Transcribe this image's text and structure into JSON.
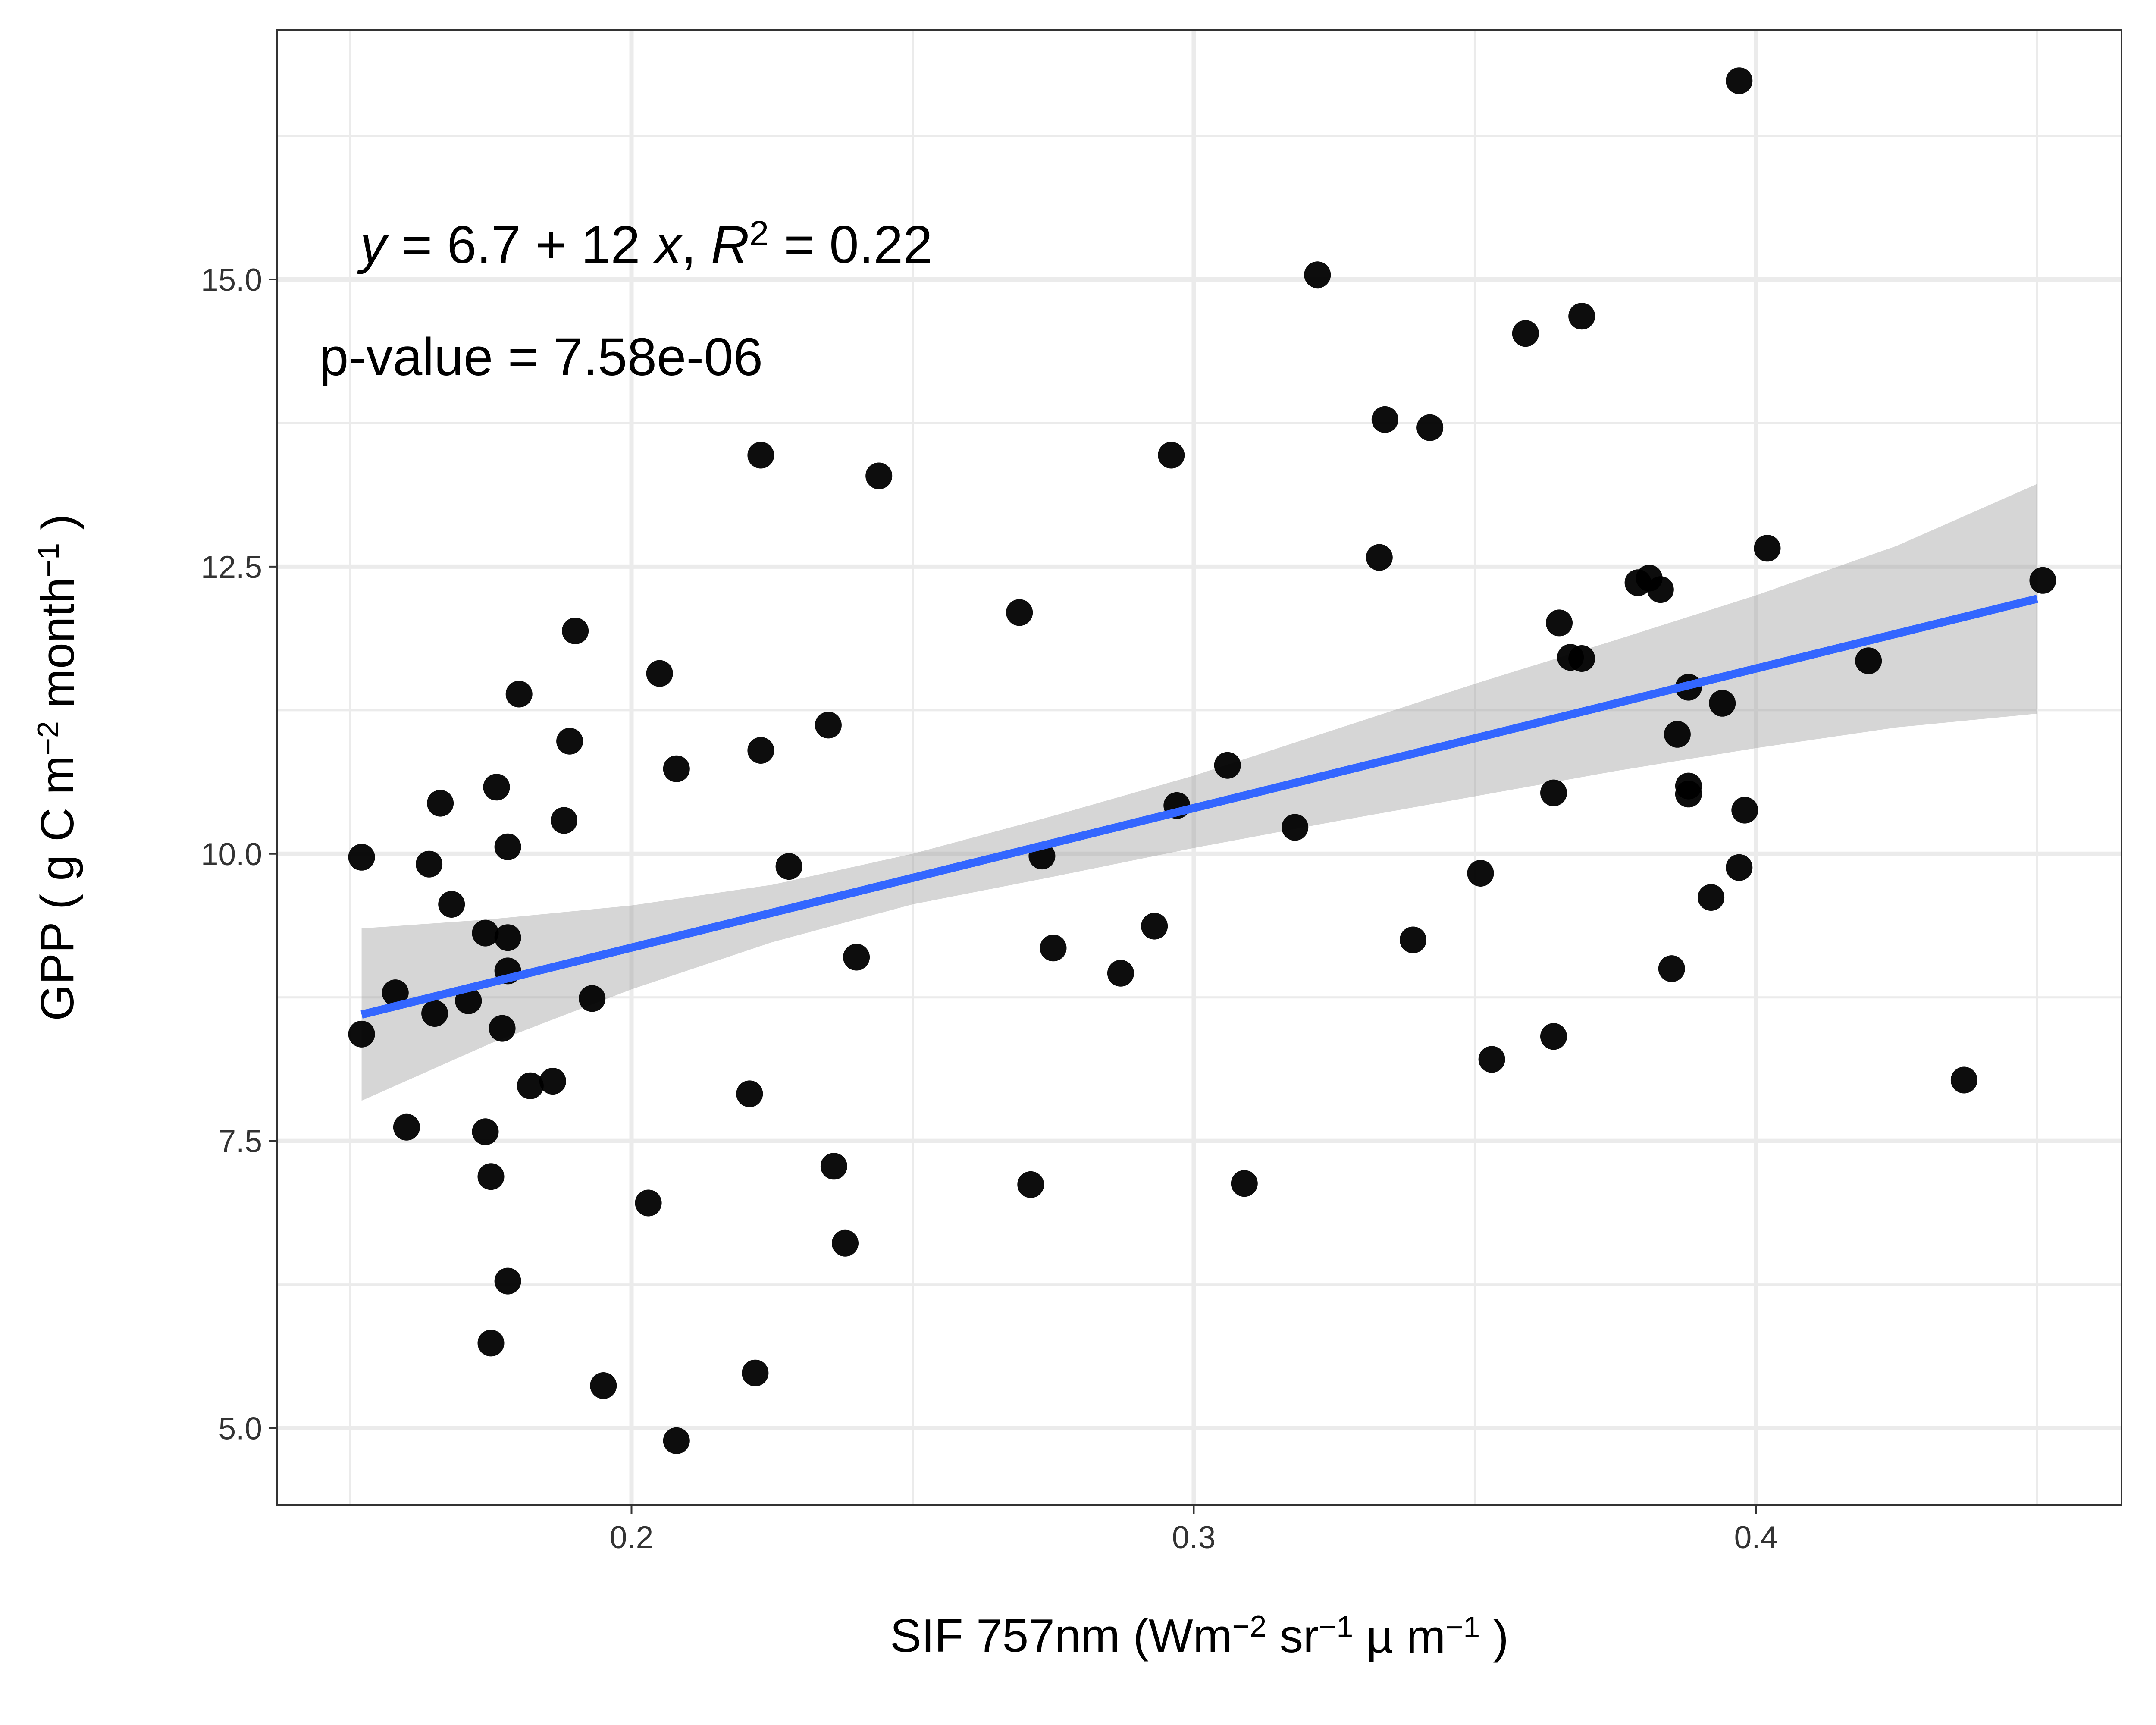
{
  "chart_data": {
    "type": "scatter",
    "xlabel": {
      "parts": [
        {
          "t": "SIF 757nm (Wm"
        },
        {
          "t": "−2",
          "sup": true
        },
        {
          "t": " sr"
        },
        {
          "t": "−1",
          "sup": true
        },
        {
          "t": " µ m"
        },
        {
          "t": "−1",
          "sup": true
        },
        {
          "t": " )"
        }
      ]
    },
    "ylabel": {
      "parts": [
        {
          "t": "GPP ( g C m"
        },
        {
          "t": "−2",
          "sup": true
        },
        {
          "t": " month"
        },
        {
          "t": "−1",
          "sup": true
        },
        {
          "t": " )"
        }
      ]
    },
    "xlim": [
      0.137,
      0.465
    ],
    "ylim": [
      4.33,
      17.17
    ],
    "x_ticks": [
      0.2,
      0.3,
      0.4
    ],
    "x_tick_labels": [
      "0.2",
      "0.3",
      "0.4"
    ],
    "y_ticks": [
      5.0,
      7.5,
      10.0,
      12.5,
      15.0
    ],
    "y_tick_labels": [
      "5.0",
      "7.5",
      "10.0",
      "12.5",
      "15.0"
    ],
    "grid": true,
    "legend": "none",
    "annotations": [
      {
        "parts": [
          {
            "t": "y",
            "i": true
          },
          {
            "t": " = 6.7 + 12 "
          },
          {
            "t": "x",
            "i": true
          },
          {
            "t": ",  "
          },
          {
            "t": "R",
            "i": true
          },
          {
            "t": "2",
            "sup": true
          },
          {
            "t": " = 0.22"
          }
        ],
        "position": "top-left"
      },
      {
        "parts": [
          {
            "t": "p-value = 7.58e-06"
          }
        ],
        "position": "top-left"
      }
    ],
    "fit": {
      "x": [
        0.152,
        0.175,
        0.2,
        0.225,
        0.25,
        0.275,
        0.3,
        0.325,
        0.35,
        0.375,
        0.4,
        0.425,
        0.45
      ],
      "y": [
        8.6,
        8.88,
        9.18,
        9.48,
        9.78,
        10.08,
        10.38,
        10.68,
        10.98,
        11.28,
        11.58,
        11.88,
        12.22
      ],
      "lower": [
        7.85,
        8.35,
        8.82,
        9.23,
        9.56,
        9.8,
        10.05,
        10.28,
        10.5,
        10.72,
        10.92,
        11.1,
        11.22
      ],
      "upper": [
        9.35,
        9.43,
        9.55,
        9.73,
        10.0,
        10.33,
        10.68,
        11.08,
        11.48,
        11.86,
        12.25,
        12.68,
        13.22
      ],
      "color": "#3366ff"
    },
    "points": [
      [
        0.152,
        9.97
      ],
      [
        0.152,
        8.43
      ],
      [
        0.158,
        8.79
      ],
      [
        0.16,
        7.62
      ],
      [
        0.164,
        9.91
      ],
      [
        0.165,
        8.61
      ],
      [
        0.166,
        10.44
      ],
      [
        0.168,
        9.56
      ],
      [
        0.171,
        8.72
      ],
      [
        0.174,
        9.31
      ],
      [
        0.174,
        7.58
      ],
      [
        0.175,
        5.74
      ],
      [
        0.175,
        7.19
      ],
      [
        0.176,
        10.58
      ],
      [
        0.177,
        8.48
      ],
      [
        0.178,
        10.06
      ],
      [
        0.178,
        9.27
      ],
      [
        0.178,
        8.98
      ],
      [
        0.178,
        6.28
      ],
      [
        0.18,
        11.39
      ],
      [
        0.182,
        7.98
      ],
      [
        0.186,
        8.02
      ],
      [
        0.188,
        10.29
      ],
      [
        0.189,
        10.98
      ],
      [
        0.19,
        11.94
      ],
      [
        0.193,
        8.74
      ],
      [
        0.195,
        5.37
      ],
      [
        0.203,
        6.96
      ],
      [
        0.205,
        11.57
      ],
      [
        0.208,
        10.74
      ],
      [
        0.208,
        4.89
      ],
      [
        0.221,
        7.91
      ],
      [
        0.222,
        5.48
      ],
      [
        0.223,
        13.47
      ],
      [
        0.223,
        10.9
      ],
      [
        0.228,
        9.89
      ],
      [
        0.235,
        11.12
      ],
      [
        0.236,
        7.28
      ],
      [
        0.238,
        6.61
      ],
      [
        0.24,
        9.1
      ],
      [
        0.244,
        13.29
      ],
      [
        0.269,
        12.1
      ],
      [
        0.271,
        7.12
      ],
      [
        0.273,
        9.98
      ],
      [
        0.275,
        9.18
      ],
      [
        0.287,
        8.96
      ],
      [
        0.293,
        9.37
      ],
      [
        0.296,
        13.47
      ],
      [
        0.297,
        10.42
      ],
      [
        0.306,
        10.77
      ],
      [
        0.309,
        7.13
      ],
      [
        0.318,
        10.23
      ],
      [
        0.322,
        15.04
      ],
      [
        0.333,
        12.58
      ],
      [
        0.334,
        13.78
      ],
      [
        0.339,
        9.25
      ],
      [
        0.342,
        13.71
      ],
      [
        0.351,
        9.83
      ],
      [
        0.353,
        8.21
      ],
      [
        0.359,
        14.53
      ],
      [
        0.364,
        10.53
      ],
      [
        0.364,
        8.41
      ],
      [
        0.365,
        12.01
      ],
      [
        0.367,
        11.71
      ],
      [
        0.369,
        14.68
      ],
      [
        0.369,
        11.7
      ],
      [
        0.379,
        12.36
      ],
      [
        0.381,
        12.4
      ],
      [
        0.383,
        12.3
      ],
      [
        0.385,
        9.0
      ],
      [
        0.386,
        11.04
      ],
      [
        0.388,
        11.45
      ],
      [
        0.388,
        10.59
      ],
      [
        0.388,
        10.52
      ],
      [
        0.392,
        9.62
      ],
      [
        0.394,
        11.31
      ],
      [
        0.397,
        16.73
      ],
      [
        0.397,
        9.88
      ],
      [
        0.398,
        10.38
      ],
      [
        0.402,
        12.66
      ],
      [
        0.42,
        11.68
      ],
      [
        0.437,
        8.03
      ],
      [
        0.451,
        12.38
      ]
    ]
  }
}
